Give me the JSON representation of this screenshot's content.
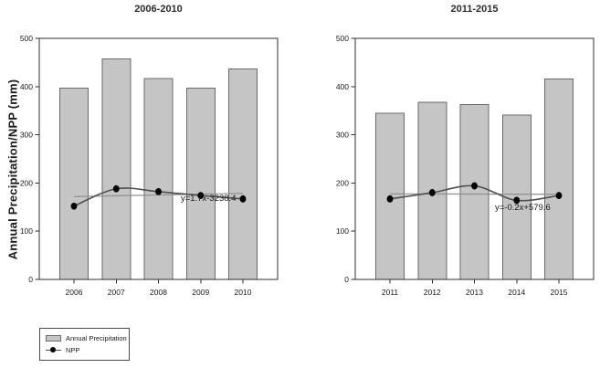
{
  "y_axis_label": "Annual Precipitation/NPP (mm)",
  "legend": {
    "position": "bottom-left",
    "items": [
      {
        "label": "Annual Precipitation",
        "swatch": "bar"
      },
      {
        "label": "NPP",
        "swatch": "line-dot"
      }
    ]
  },
  "colors": {
    "bar_fill": "#c5c5c5",
    "bar_border": "#6a6a6a",
    "npp_line": "#4f4f4f",
    "npp_marker": "#000000",
    "trend_line": "#8f8f8f",
    "axis": "#2f2f2f",
    "text": "#1a1a1a"
  },
  "chart_data": [
    {
      "type": "bar",
      "title": "2006-2010",
      "categories": [
        "2006",
        "2007",
        "2008",
        "2009",
        "2010"
      ],
      "series": [
        {
          "name": "Annual Precipitation",
          "type": "bar",
          "values": [
            397,
            457,
            417,
            397,
            437
          ]
        },
        {
          "name": "NPP",
          "type": "line",
          "values": [
            152,
            188,
            182,
            174,
            167
          ]
        },
        {
          "name": "NPP linear trend",
          "type": "trend",
          "slope": 1.7,
          "intercept": -3238.4
        }
      ],
      "equation": "y=1.7x-3238.4",
      "xlabel": "",
      "ylabel": "Annual Precipitation/NPP (mm)",
      "ylim": [
        0,
        500
      ],
      "yticks": [
        0,
        100,
        200,
        300,
        400,
        500
      ],
      "grid": false
    },
    {
      "type": "bar",
      "title": "2011-2015",
      "categories": [
        "2011",
        "2012",
        "2013",
        "2014",
        "2015"
      ],
      "series": [
        {
          "name": "Annual Precipitation",
          "type": "bar",
          "values": [
            345,
            367,
            363,
            341,
            416
          ]
        },
        {
          "name": "NPP",
          "type": "line",
          "values": [
            167,
            180,
            194,
            164,
            174
          ]
        },
        {
          "name": "NPP linear trend",
          "type": "trend",
          "slope": -0.2,
          "intercept": 579.6
        }
      ],
      "equation": "y=-0.2x+579.6",
      "xlabel": "",
      "ylabel": "Annual Precipitation/NPP (mm)",
      "ylim": [
        0,
        500
      ],
      "yticks": [
        0,
        100,
        200,
        300,
        400,
        500
      ],
      "grid": false
    }
  ]
}
